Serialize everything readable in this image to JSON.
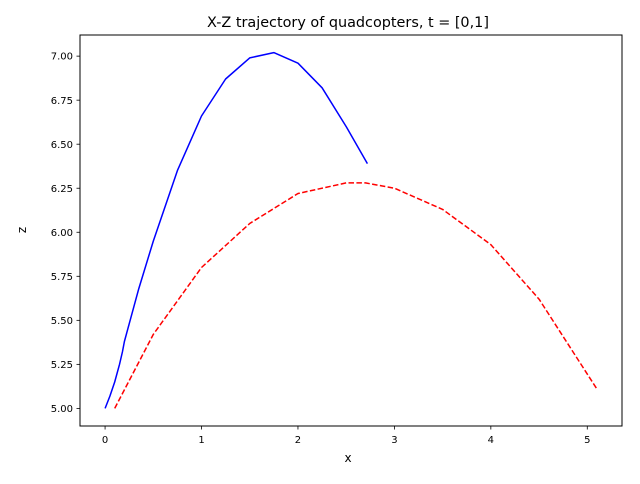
{
  "chart_data": {
    "type": "line",
    "title": "X-Z trajectory of quadcopters, t = [0,1]",
    "xlabel": "x",
    "ylabel": "z",
    "xlim": [
      -0.26,
      5.36
    ],
    "ylim": [
      4.9,
      7.12
    ],
    "xticks": [
      0,
      1,
      2,
      3,
      4,
      5
    ],
    "xtick_labels": [
      "0",
      "1",
      "2",
      "3",
      "4",
      "5"
    ],
    "yticks": [
      5.0,
      5.25,
      5.5,
      5.75,
      6.0,
      6.25,
      6.5,
      6.75,
      7.0
    ],
    "ytick_labels": [
      "5.00",
      "5.25",
      "5.50",
      "5.75",
      "6.00",
      "6.25",
      "6.50",
      "6.75",
      "7.00"
    ],
    "grid": false,
    "series": [
      {
        "color": "#0000ff",
        "linestyle": "solid",
        "x": [
          0.0,
          0.05,
          0.1,
          0.15,
          0.18,
          0.2,
          0.25,
          0.3,
          0.35,
          0.5,
          0.75,
          1.0,
          1.25,
          1.5,
          1.75,
          2.0,
          2.25,
          2.5,
          2.72
        ],
        "y": [
          5.0,
          5.07,
          5.15,
          5.25,
          5.32,
          5.38,
          5.48,
          5.58,
          5.68,
          5.95,
          6.35,
          6.66,
          6.87,
          6.99,
          7.02,
          6.96,
          6.82,
          6.6,
          6.39
        ]
      },
      {
        "color": "#ff0000",
        "linestyle": "dashed",
        "x": [
          0.1,
          0.5,
          1.0,
          1.5,
          2.0,
          2.5,
          2.7,
          3.0,
          3.5,
          4.0,
          4.5,
          5.1
        ],
        "y": [
          5.0,
          5.42,
          5.8,
          6.05,
          6.22,
          6.28,
          6.28,
          6.25,
          6.13,
          5.93,
          5.62,
          5.11
        ]
      }
    ]
  }
}
